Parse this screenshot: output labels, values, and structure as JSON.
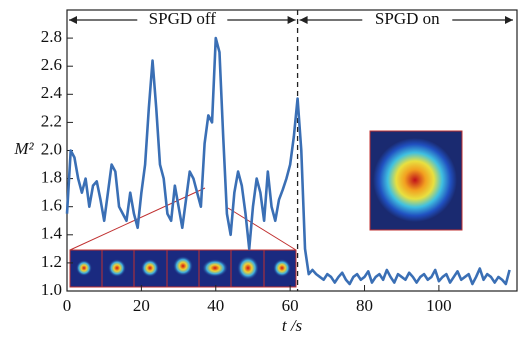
{
  "chart_data": {
    "type": "line",
    "xlabel": "t /s",
    "ylabel": "M²",
    "annotations": [
      "SPGD off",
      "SPGD on"
    ],
    "vline_x": 62,
    "x": [
      0,
      1,
      2,
      3,
      4,
      5,
      6,
      7,
      8,
      9,
      10,
      11,
      12,
      13,
      14,
      15,
      16,
      17,
      18,
      19,
      20,
      21,
      22,
      23,
      24,
      25,
      26,
      27,
      28,
      29,
      30,
      31,
      32,
      33,
      34,
      35,
      36,
      37,
      38,
      39,
      40,
      41,
      42,
      43,
      44,
      45,
      46,
      47,
      48,
      49,
      50,
      51,
      52,
      53,
      54,
      55,
      56,
      57,
      58,
      59,
      60,
      61,
      62,
      63,
      64,
      65,
      66,
      67,
      68,
      69,
      70,
      71,
      72,
      73,
      74,
      75,
      76,
      77,
      78,
      79,
      80,
      81,
      82,
      83,
      84,
      85,
      86,
      87,
      88,
      89,
      90,
      91,
      92,
      93,
      94,
      95,
      96,
      97,
      98,
      99,
      100,
      101,
      102,
      103,
      104,
      105,
      106,
      107,
      108,
      109,
      110,
      111,
      112,
      113,
      114,
      115,
      116,
      117,
      118,
      119
    ],
    "series": [
      {
        "color": "#3a6fb5",
        "values": [
          1.55,
          2.0,
          1.95,
          1.8,
          1.7,
          1.8,
          1.6,
          1.75,
          1.78,
          1.65,
          1.5,
          1.7,
          1.9,
          1.85,
          1.6,
          1.55,
          1.5,
          1.7,
          1.55,
          1.45,
          1.7,
          1.9,
          2.3,
          2.64,
          2.3,
          1.9,
          1.8,
          1.55,
          1.5,
          1.75,
          1.6,
          1.45,
          1.65,
          1.85,
          1.8,
          1.7,
          1.6,
          2.05,
          2.25,
          2.2,
          2.8,
          2.7,
          2.1,
          1.55,
          1.4,
          1.7,
          1.85,
          1.75,
          1.55,
          1.3,
          1.6,
          1.8,
          1.7,
          1.5,
          1.85,
          1.6,
          1.5,
          1.65,
          1.72,
          1.8,
          1.9,
          2.1,
          2.37,
          2.0,
          1.3,
          1.12,
          1.15,
          1.12,
          1.1,
          1.08,
          1.12,
          1.1,
          1.06,
          1.1,
          1.13,
          1.08,
          1.05,
          1.1,
          1.12,
          1.08,
          1.1,
          1.14,
          1.06,
          1.1,
          1.12,
          1.08,
          1.15,
          1.1,
          1.06,
          1.12,
          1.1,
          1.08,
          1.13,
          1.1,
          1.06,
          1.1,
          1.12,
          1.08,
          1.1,
          1.15,
          1.07,
          1.1,
          1.12,
          1.06,
          1.1,
          1.14,
          1.08,
          1.1,
          1.12,
          1.05,
          1.1,
          1.16,
          1.08,
          1.12,
          1.1,
          1.06,
          1.1,
          1.08,
          1.05,
          1.15
        ]
      }
    ],
    "xlim": [
      0,
      121
    ],
    "xticks": [
      0,
      20,
      40,
      60,
      80,
      100
    ],
    "ylim": [
      1.0,
      3.0
    ],
    "yticks": [
      {
        "value": 1.0,
        "label": "1.0"
      },
      1.2,
      1.4,
      1.6,
      1.8,
      {
        "value": 2.0,
        "label": "2.0"
      },
      2.2,
      2.4,
      2.6,
      2.8
    ]
  }
}
